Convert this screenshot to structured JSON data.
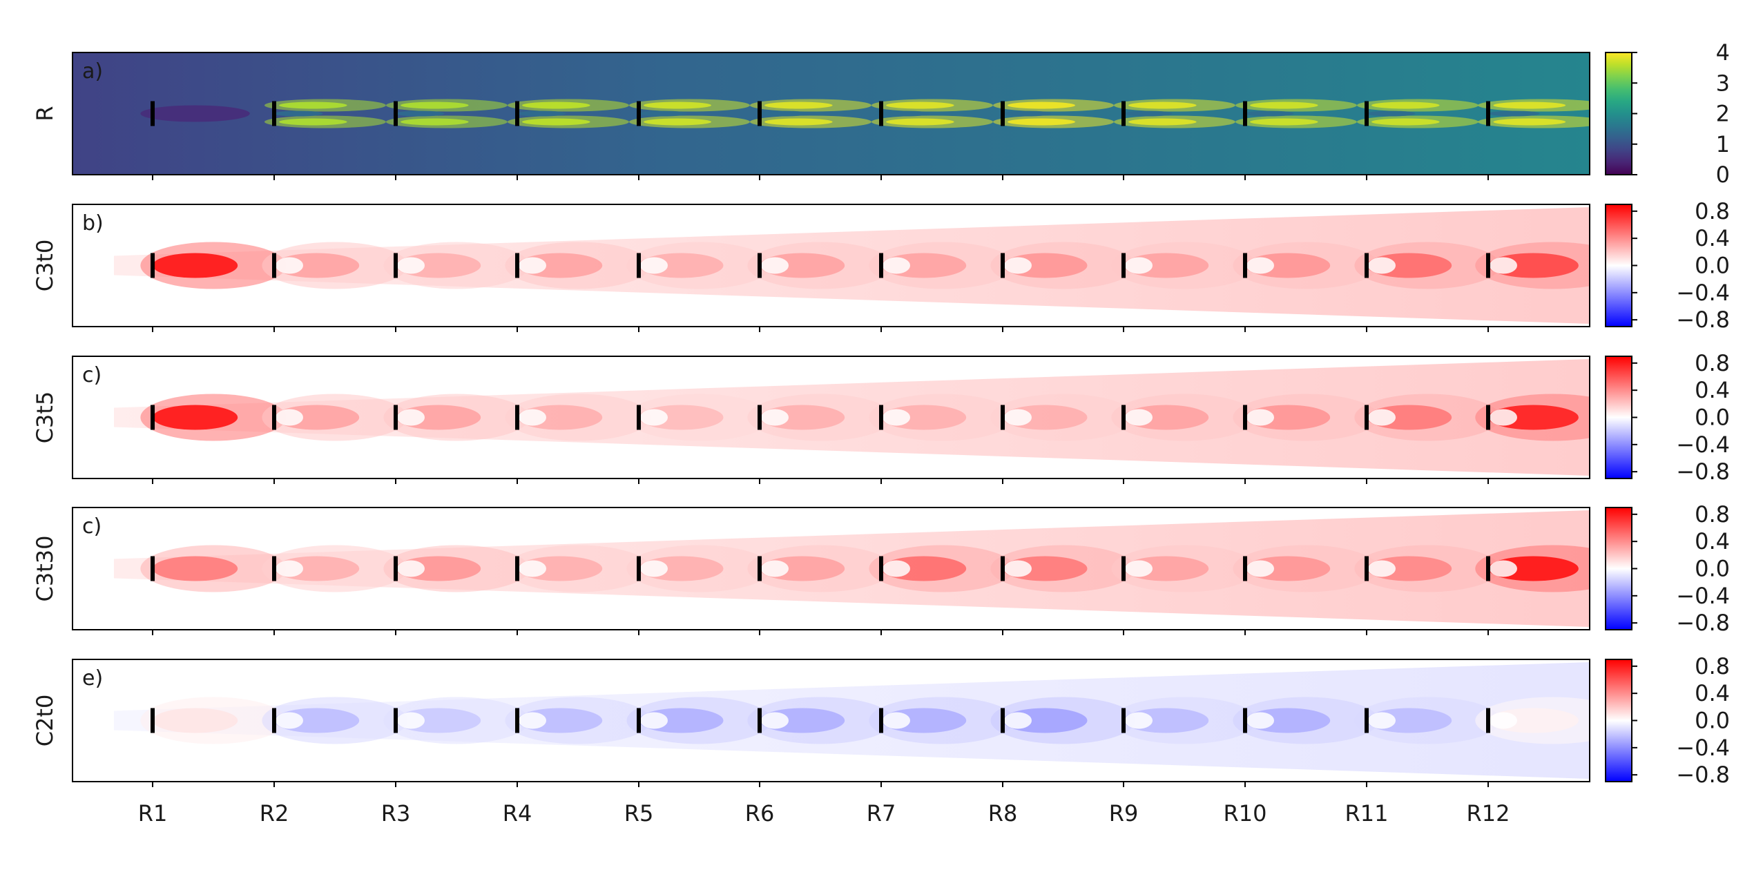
{
  "figure": {
    "x_tick_labels": [
      "R1",
      "R2",
      "R3",
      "R4",
      "R5",
      "R6",
      "R7",
      "R8",
      "R9",
      "R10",
      "R11",
      "R12"
    ]
  },
  "chart_data": [
    {
      "type": "heatmap",
      "panel_label": "a)",
      "ylabel": "R",
      "colormap": "viridis",
      "colorbar": {
        "min": 0,
        "max": 4,
        "ticks": [
          0,
          1,
          2,
          3,
          4
        ],
        "tick_labels": [
          "0",
          "1",
          "2",
          "3",
          "4"
        ]
      },
      "markers": [
        "R1",
        "R2",
        "R3",
        "R4",
        "R5",
        "R6",
        "R7",
        "R8",
        "R9",
        "R10",
        "R11",
        "R12"
      ],
      "wake_peak_values": [
        0.5,
        3.5,
        3.5,
        3.6,
        3.7,
        3.8,
        3.8,
        3.9,
        3.8,
        3.7,
        3.7,
        3.8
      ],
      "background_value": 1.5
    },
    {
      "type": "heatmap",
      "panel_label": "b)",
      "ylabel": "C3t0",
      "colormap": "bwr",
      "colorbar": {
        "min": -0.9,
        "max": 0.9,
        "ticks": [
          0.8,
          0.4,
          0.0,
          -0.4,
          -0.8
        ],
        "tick_labels": [
          "0.8",
          "0.4",
          "0.0",
          "−0.4",
          "−0.8"
        ]
      },
      "markers": [
        "R1",
        "R2",
        "R3",
        "R4",
        "R5",
        "R6",
        "R7",
        "R8",
        "R9",
        "R10",
        "R11",
        "R12"
      ],
      "wake_values": [
        0.9,
        0.35,
        0.3,
        0.35,
        0.3,
        0.35,
        0.35,
        0.4,
        0.35,
        0.4,
        0.55,
        0.7
      ]
    },
    {
      "type": "heatmap",
      "panel_label": "c)",
      "ylabel": "C3t5",
      "colormap": "bwr",
      "colorbar": {
        "min": -0.9,
        "max": 0.9,
        "ticks": [
          0.8,
          0.4,
          0.0,
          -0.4,
          -0.8
        ],
        "tick_labels": [
          "0.8",
          "0.4",
          "0.0",
          "−0.4",
          "−0.8"
        ]
      },
      "markers": [
        "R1",
        "R2",
        "R3",
        "R4",
        "R5",
        "R6",
        "R7",
        "R8",
        "R9",
        "R10",
        "R11",
        "R12"
      ],
      "wake_values": [
        0.9,
        0.35,
        0.35,
        0.3,
        0.25,
        0.3,
        0.3,
        0.3,
        0.35,
        0.4,
        0.5,
        0.85
      ]
    },
    {
      "type": "heatmap",
      "panel_label": "c)",
      "ylabel": "C3t30",
      "colormap": "bwr",
      "colorbar": {
        "min": -0.9,
        "max": 0.9,
        "ticks": [
          0.8,
          0.4,
          0.0,
          -0.4,
          -0.8
        ],
        "tick_labels": [
          "0.8",
          "0.4",
          "0.0",
          "−0.4",
          "−0.8"
        ]
      },
      "markers": [
        "R1",
        "R2",
        "R3",
        "R4",
        "R5",
        "R6",
        "R7",
        "R8",
        "R9",
        "R10",
        "R11",
        "R12"
      ],
      "wake_values": [
        0.5,
        0.3,
        0.4,
        0.3,
        0.3,
        0.35,
        0.55,
        0.5,
        0.35,
        0.4,
        0.45,
        0.9
      ]
    },
    {
      "type": "heatmap",
      "panel_label": "e)",
      "ylabel": "C2t0",
      "colormap": "bwr",
      "colorbar": {
        "min": -0.9,
        "max": 0.9,
        "ticks": [
          0.8,
          0.4,
          0.0,
          -0.4,
          -0.8
        ],
        "tick_labels": [
          "0.8",
          "0.4",
          "0.0",
          "−0.4",
          "−0.8"
        ]
      },
      "markers": [
        "R1",
        "R2",
        "R3",
        "R4",
        "R5",
        "R6",
        "R7",
        "R8",
        "R9",
        "R10",
        "R11",
        "R12"
      ],
      "wake_values": [
        0.1,
        -0.25,
        -0.2,
        -0.25,
        -0.3,
        -0.3,
        -0.3,
        -0.35,
        -0.25,
        -0.3,
        -0.25,
        0.05
      ]
    }
  ]
}
